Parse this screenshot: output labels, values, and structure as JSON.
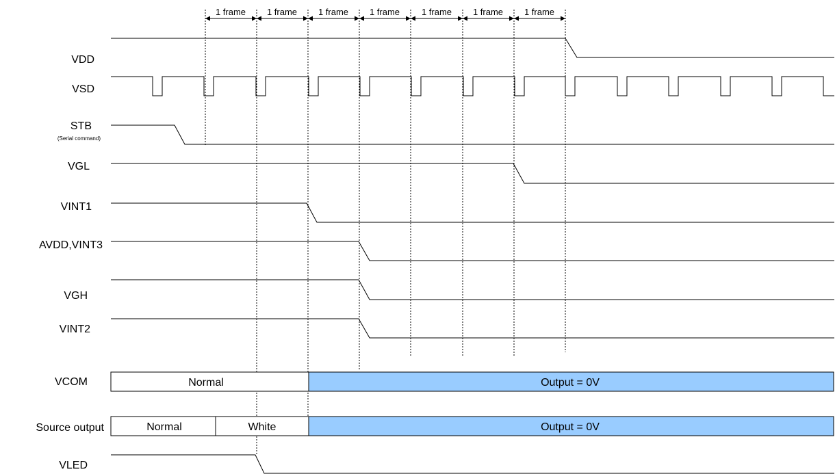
{
  "frame_label": "1 frame",
  "signals": {
    "vdd": "VDD",
    "vsd": "VSD",
    "stb": "STB",
    "stb_sub": "(Serial command)",
    "vgl": "VGL",
    "vint1": "VINT1",
    "avdd": "AVDD,VINT3",
    "vgh": "VGH",
    "vint2": "VINT2",
    "vcom": "VCOM",
    "source": "Source output",
    "vled": "VLED"
  },
  "vcom_bar": {
    "normal": "Normal",
    "output": "Output = 0V"
  },
  "source_bar": {
    "normal": "Normal",
    "white": "White",
    "output": "Output = 0V"
  },
  "colors": {
    "output_fill": "#99ccff",
    "line": "#000000"
  }
}
